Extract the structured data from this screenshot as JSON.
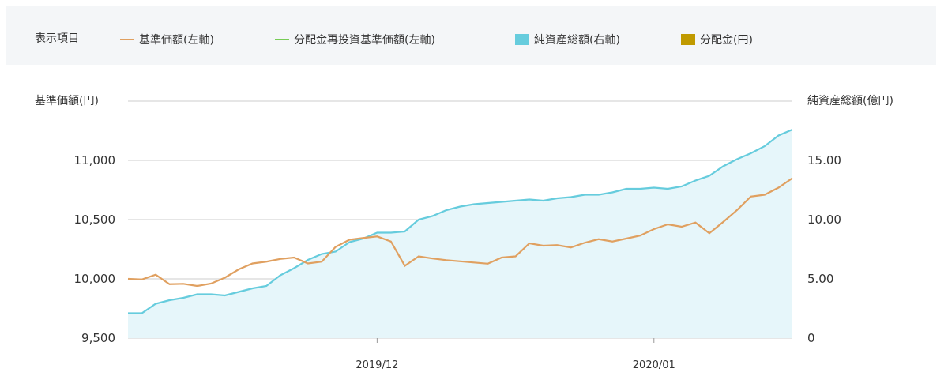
{
  "legend": {
    "title": "表示項目",
    "items": [
      {
        "label": "基準価額(左軸)",
        "kind": "line",
        "color": "#e0a060"
      },
      {
        "label": "分配金再投資基準価額(左軸)",
        "kind": "line",
        "color": "#77cc55"
      },
      {
        "label": "純資産総額(右軸)",
        "kind": "box",
        "color": "#66ccdd"
      },
      {
        "label": "分配金(円)",
        "kind": "box",
        "color": "#c09a00"
      }
    ]
  },
  "chart_data": {
    "type": "line",
    "left_axis_title": "基準価額(円)",
    "right_axis_title": "純資産総額(億円)",
    "left_ylim": [
      9500,
      11500
    ],
    "right_ylim": [
      0,
      20
    ],
    "left_ticks": [
      9500,
      10000,
      10500,
      11000
    ],
    "left_tick_labels": [
      "9,500",
      "10,000",
      "10,500",
      "11,000"
    ],
    "right_ticks": [
      0,
      5,
      10,
      15
    ],
    "right_tick_labels": [
      "0",
      "5.00",
      "10.00",
      "15.00"
    ],
    "x_tick_labels": [
      {
        "label": "2019/12",
        "index": 18
      },
      {
        "label": "2020/01",
        "index": 38
      }
    ],
    "colors": {
      "nav": "#e0a060",
      "aum_line": "#66ccdd",
      "aum_fill": "#e6f6fa",
      "grid": "#cccccc"
    },
    "series": [
      {
        "name": "基準価額(左軸)",
        "values": [
          10000,
          9995,
          10035,
          9955,
          9958,
          9940,
          9960,
          10010,
          10080,
          10130,
          10145,
          10168,
          10180,
          10130,
          10145,
          10270,
          10330,
          10345,
          10358,
          10315,
          10110,
          10190,
          10172,
          10158,
          10148,
          10138,
          10128,
          10180,
          10190,
          10300,
          10280,
          10285,
          10265,
          10305,
          10335,
          10315,
          10340,
          10365,
          10420,
          10460,
          10440,
          10475,
          10385,
          10480,
          10580,
          10695,
          10710,
          10770,
          10850
        ]
      },
      {
        "name": "純資産総額(右軸)",
        "values": [
          2.1,
          2.1,
          2.9,
          3.2,
          3.4,
          3.7,
          3.7,
          3.6,
          3.9,
          4.2,
          4.4,
          5.3,
          5.9,
          6.6,
          7.1,
          7.3,
          8.1,
          8.4,
          8.9,
          8.9,
          9.0,
          10.0,
          10.3,
          10.8,
          11.1,
          11.3,
          11.4,
          11.5,
          11.6,
          11.7,
          11.6,
          11.8,
          11.9,
          12.1,
          12.1,
          12.3,
          12.6,
          12.6,
          12.7,
          12.6,
          12.8,
          13.3,
          13.7,
          14.5,
          15.1,
          15.6,
          16.2,
          17.1,
          17.6
        ]
      }
    ]
  }
}
